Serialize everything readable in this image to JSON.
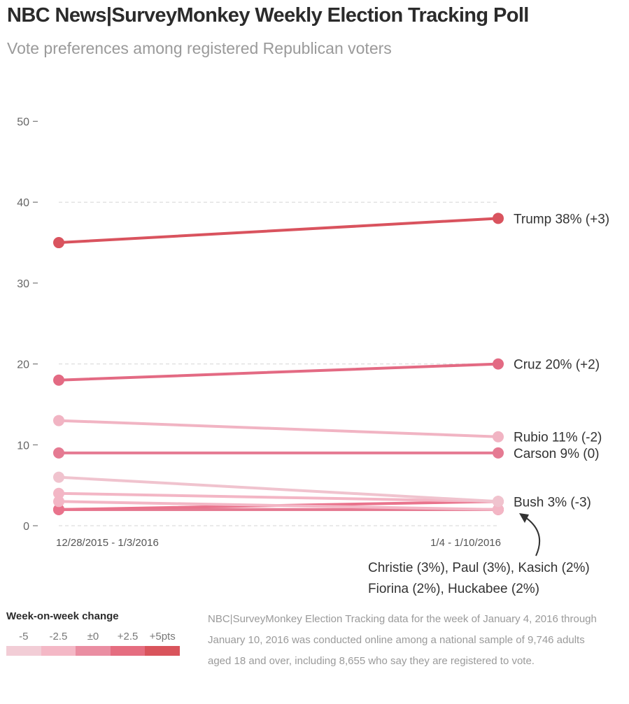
{
  "header": {
    "title": "NBC News|SurveyMonkey Weekly Election Tracking Poll",
    "subtitle": "Vote preferences among registered Republican voters"
  },
  "chart_data": {
    "type": "line",
    "title": "NBC News|SurveyMonkey Weekly Election Tracking Poll",
    "subtitle": "Vote preferences among registered Republican voters",
    "xlabel": "",
    "ylabel": "",
    "x": [
      "12/28/2015 - 1/3/2016",
      "1/4 - 1/10/2016"
    ],
    "ylim": [
      0,
      50
    ],
    "yticks": [
      0,
      10,
      20,
      30,
      40,
      50
    ],
    "grid": "dashed horizontal at 0, 20, 40",
    "series": [
      {
        "name": "Trump",
        "values": [
          35,
          38
        ],
        "change": 3,
        "color": "#d9535e",
        "label": "Trump 38% (+3)"
      },
      {
        "name": "Cruz",
        "values": [
          18,
          20
        ],
        "change": 2,
        "color": "#e36a83",
        "label": "Cruz 20% (+2)"
      },
      {
        "name": "Rubio",
        "values": [
          13,
          11
        ],
        "change": -2,
        "color": "#f1b4c3",
        "label": "Rubio 11% (-2)"
      },
      {
        "name": "Carson",
        "values": [
          9,
          9
        ],
        "change": 0,
        "color": "#e57a92",
        "label": "Carson 9% (0)"
      },
      {
        "name": "Bush",
        "values": [
          6,
          3
        ],
        "change": -3,
        "color": "#f0c3ce",
        "label": "Bush 3% (-3)"
      },
      {
        "name": "Christie",
        "values": [
          4,
          3
        ],
        "change": -1,
        "color": "#f3b6c5",
        "label": ""
      },
      {
        "name": "Fiorina",
        "values": [
          3,
          2
        ],
        "change": -1,
        "color": "#f3b6c5",
        "label": ""
      },
      {
        "name": "Paul",
        "values": [
          2,
          3
        ],
        "change": 1,
        "color": "#e9738c",
        "label": ""
      },
      {
        "name": "Kasich",
        "values": [
          2,
          2
        ],
        "change": 0,
        "color": "#e57a92",
        "label": ""
      },
      {
        "name": "Huckabee",
        "values": [
          2,
          2
        ],
        "change": 0,
        "color": "#e57a92",
        "label": ""
      }
    ],
    "annotation": {
      "line1": "Christie (3%), Paul (3%), Kasich (2%)",
      "line2": "Fiorina (2%), Huckabee (2%)"
    },
    "legend": {
      "title": "Week-on-week change",
      "items": [
        {
          "label": "-5",
          "color": "#f2cdd6"
        },
        {
          "label": "-2.5",
          "color": "#f4b8c6"
        },
        {
          "label": "±0",
          "color": "#ea8ea2"
        },
        {
          "label": "+2.5",
          "color": "#e56d80"
        },
        {
          "label": "+5pts",
          "color": "#d9545c"
        }
      ],
      "placement": "bottom-left"
    }
  },
  "footer": {
    "source": "NBC|SurveyMonkey Election Tracking data for the week of January 4, 2016 through January 10, 2016 was conducted online among a national sample of 9,746 adults aged 18 and over, including 8,655 who say they are registered to vote."
  }
}
